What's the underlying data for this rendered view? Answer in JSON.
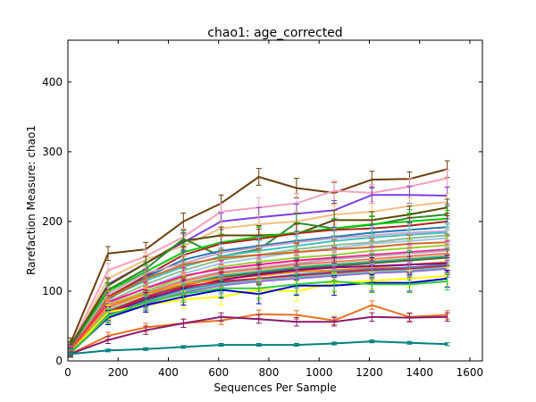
{
  "chart_data": {
    "type": "line",
    "title": "chao1: age_corrected",
    "xlabel": "Sequences Per Sample",
    "ylabel": "Rarefaction Measure: chao1",
    "xlim": [
      0,
      1650
    ],
    "ylim": [
      0,
      460
    ],
    "x_ticks": [
      0,
      200,
      400,
      600,
      800,
      1000,
      1200,
      1400,
      1600
    ],
    "y_ticks": [
      0,
      100,
      200,
      300,
      400
    ],
    "x_tick_labels": [
      "0",
      "200",
      "400",
      "600",
      "800",
      "1000",
      "1200",
      "1400",
      "1600"
    ],
    "y_tick_labels": [
      "0",
      "100",
      "200",
      "300",
      "400"
    ],
    "x": [
      10,
      160,
      310,
      460,
      610,
      760,
      910,
      1060,
      1210,
      1360,
      1510
    ],
    "grid": false,
    "error_bars": true,
    "series": [
      {
        "color": "#6b3e0a",
        "values": [
          25,
          154,
          160,
          200,
          226,
          264,
          248,
          241,
          260,
          261,
          275
        ],
        "err": [
          8,
          10,
          10,
          12,
          12,
          12,
          14,
          15,
          12,
          10,
          12
        ]
      },
      {
        "color": "#f4a0b8",
        "values": [
          20,
          130,
          150,
          178,
          214,
          220,
          226,
          244,
          241,
          250,
          262
        ],
        "err": [
          6,
          10,
          10,
          12,
          12,
          14,
          14,
          14,
          12,
          12,
          12
        ]
      },
      {
        "color": "#7b3fe4",
        "values": [
          18,
          110,
          140,
          170,
          200,
          206,
          211,
          216,
          238,
          238,
          237
        ],
        "err": [
          6,
          10,
          10,
          12,
          12,
          14,
          14,
          14,
          12,
          12,
          12
        ]
      },
      {
        "color": "#f0c080",
        "values": [
          18,
          118,
          145,
          165,
          190,
          196,
          200,
          210,
          214,
          222,
          228
        ],
        "err": [
          6,
          10,
          10,
          12,
          12,
          14,
          14,
          14,
          12,
          12,
          12
        ]
      },
      {
        "color": "#5a4a00",
        "values": [
          22,
          108,
          140,
          172,
          180,
          180,
          182,
          202,
          202,
          210,
          220
        ],
        "err": [
          6,
          10,
          10,
          12,
          12,
          14,
          14,
          14,
          12,
          12,
          12
        ]
      },
      {
        "color": "#2e8b2e",
        "values": [
          20,
          102,
          132,
          175,
          150,
          160,
          198,
          190,
          195,
          205,
          210
        ],
        "err": [
          6,
          10,
          10,
          12,
          12,
          14,
          14,
          14,
          12,
          12,
          12
        ]
      },
      {
        "color": "#00cc00",
        "values": [
          16,
          100,
          128,
          156,
          170,
          178,
          184,
          190,
          196,
          200,
          204
        ],
        "err": [
          6,
          10,
          10,
          12,
          12,
          14,
          14,
          14,
          12,
          12,
          12
        ]
      },
      {
        "color": "#b22222",
        "values": [
          18,
          92,
          122,
          152,
          168,
          175,
          183,
          188,
          190,
          194,
          200
        ],
        "err": [
          6,
          10,
          10,
          12,
          12,
          14,
          14,
          14,
          12,
          12,
          12
        ]
      },
      {
        "color": "#1f77b4",
        "values": [
          16,
          88,
          120,
          145,
          158,
          165,
          172,
          178,
          184,
          188,
          192
        ],
        "err": [
          6,
          10,
          10,
          12,
          12,
          14,
          14,
          14,
          12,
          12,
          12
        ]
      },
      {
        "color": "#c8a2c8",
        "values": [
          15,
          96,
          126,
          140,
          155,
          163,
          170,
          176,
          180,
          184,
          186
        ],
        "err": [
          6,
          10,
          10,
          12,
          12,
          14,
          14,
          14,
          12,
          12,
          12
        ]
      },
      {
        "color": "#40c0c0",
        "values": [
          15,
          90,
          115,
          135,
          150,
          158,
          165,
          172,
          177,
          181,
          184
        ],
        "err": [
          6,
          10,
          10,
          12,
          12,
          14,
          14,
          14,
          12,
          12,
          12
        ]
      },
      {
        "color": "#8fbc8f",
        "values": [
          14,
          85,
          110,
          130,
          145,
          152,
          160,
          166,
          170,
          176,
          180
        ],
        "err": [
          6,
          10,
          10,
          12,
          12,
          14,
          14,
          14,
          12,
          12,
          12
        ]
      },
      {
        "color": "#a0c4e8",
        "values": [
          14,
          82,
          105,
          125,
          140,
          148,
          156,
          162,
          168,
          172,
          176
        ],
        "err": [
          6,
          10,
          10,
          12,
          12,
          14,
          14,
          14,
          12,
          12,
          12
        ]
      },
      {
        "color": "#d2691e",
        "values": [
          15,
          90,
          118,
          138,
          148,
          152,
          156,
          160,
          163,
          168,
          170
        ],
        "err": [
          6,
          10,
          10,
          12,
          12,
          14,
          14,
          14,
          12,
          12,
          12
        ]
      },
      {
        "color": "#9acd32",
        "values": [
          13,
          80,
          100,
          120,
          135,
          142,
          148,
          152,
          158,
          162,
          166
        ],
        "err": [
          6,
          10,
          10,
          12,
          12,
          14,
          14,
          14,
          12,
          12,
          12
        ]
      },
      {
        "color": "#ff1493",
        "values": [
          14,
          84,
          104,
          122,
          132,
          138,
          144,
          148,
          152,
          156,
          160
        ],
        "err": [
          6,
          10,
          10,
          12,
          12,
          14,
          14,
          14,
          12,
          12,
          12
        ]
      },
      {
        "color": "#b0b0b0",
        "values": [
          13,
          78,
          98,
          116,
          128,
          134,
          140,
          146,
          150,
          154,
          158
        ],
        "err": [
          6,
          10,
          10,
          12,
          12,
          14,
          14,
          14,
          12,
          12,
          12
        ]
      },
      {
        "color": "#ff6666",
        "values": [
          13,
          76,
          96,
          114,
          126,
          132,
          138,
          142,
          146,
          150,
          154
        ],
        "err": [
          6,
          10,
          10,
          12,
          12,
          14,
          14,
          14,
          12,
          12,
          12
        ]
      },
      {
        "color": "#e0d080",
        "values": [
          12,
          74,
          94,
          112,
          124,
          130,
          136,
          140,
          144,
          148,
          152
        ],
        "err": [
          6,
          10,
          10,
          12,
          12,
          14,
          14,
          14,
          12,
          12,
          12
        ]
      },
      {
        "color": "#20b2aa",
        "values": [
          12,
          72,
          92,
          110,
          122,
          128,
          134,
          138,
          142,
          146,
          150
        ],
        "err": [
          6,
          10,
          10,
          12,
          12,
          14,
          14,
          14,
          12,
          12,
          12
        ]
      },
      {
        "color": "#556b2f",
        "values": [
          12,
          70,
          90,
          108,
          120,
          126,
          132,
          136,
          140,
          144,
          148
        ],
        "err": [
          6,
          10,
          10,
          12,
          12,
          14,
          14,
          14,
          12,
          12,
          12
        ]
      },
      {
        "color": "#ff8c00",
        "values": [
          12,
          80,
          96,
          110,
          118,
          122,
          128,
          130,
          134,
          138,
          142
        ],
        "err": [
          6,
          10,
          10,
          12,
          12,
          14,
          14,
          14,
          12,
          12,
          12
        ]
      },
      {
        "color": "#8b008b",
        "values": [
          12,
          68,
          88,
          104,
          116,
          124,
          130,
          134,
          136,
          138,
          140
        ],
        "err": [
          6,
          10,
          10,
          12,
          12,
          14,
          14,
          14,
          12,
          12,
          12
        ]
      },
      {
        "color": "#4682b4",
        "values": [
          12,
          66,
          86,
          102,
          112,
          118,
          124,
          128,
          132,
          134,
          138
        ],
        "err": [
          6,
          10,
          10,
          12,
          12,
          14,
          14,
          14,
          12,
          12,
          12
        ]
      },
      {
        "color": "#dc143c",
        "values": [
          12,
          70,
          92,
          106,
          114,
          118,
          122,
          126,
          130,
          132,
          136
        ],
        "err": [
          6,
          10,
          10,
          12,
          12,
          14,
          14,
          14,
          12,
          12,
          12
        ]
      },
      {
        "color": "#66cdaa",
        "values": [
          11,
          64,
          84,
          100,
          110,
          116,
          120,
          124,
          128,
          130,
          134
        ],
        "err": [
          6,
          10,
          10,
          12,
          12,
          14,
          14,
          14,
          12,
          12,
          12
        ]
      },
      {
        "color": "#9370db",
        "values": [
          11,
          62,
          82,
          98,
          108,
          114,
          118,
          122,
          126,
          128,
          132
        ],
        "err": [
          6,
          10,
          10,
          12,
          12,
          14,
          14,
          14,
          12,
          12,
          12
        ]
      },
      {
        "color": "#ffff00",
        "values": [
          12,
          70,
          80,
          88,
          92,
          102,
          100,
          112,
          115,
          118,
          122
        ],
        "err": [
          6,
          10,
          10,
          12,
          12,
          14,
          14,
          14,
          12,
          12,
          12
        ]
      },
      {
        "color": "#0000cd",
        "values": [
          12,
          62,
          80,
          92,
          102,
          96,
          108,
          108,
          112,
          112,
          118
        ],
        "err": [
          6,
          10,
          10,
          12,
          12,
          14,
          14,
          14,
          12,
          12,
          12
        ]
      },
      {
        "color": "#32cd32",
        "values": [
          11,
          64,
          84,
          96,
          104,
          104,
          110,
          114,
          110,
          110,
          114
        ],
        "err": [
          6,
          10,
          10,
          12,
          12,
          14,
          14,
          14,
          12,
          12,
          12
        ]
      },
      {
        "color": "#e87020",
        "values": [
          10,
          36,
          48,
          54,
          58,
          67,
          66,
          58,
          80,
          63,
          66
        ],
        "err": [
          4,
          5,
          6,
          6,
          6,
          6,
          6,
          6,
          6,
          6,
          6
        ]
      },
      {
        "color": "#8b1a6b",
        "values": [
          10,
          30,
          44,
          54,
          63,
          60,
          56,
          56,
          63,
          62,
          63
        ],
        "err": [
          4,
          5,
          6,
          6,
          6,
          6,
          6,
          6,
          6,
          6,
          6
        ]
      },
      {
        "color": "#008080",
        "values": [
          10,
          15,
          17,
          20,
          23,
          23,
          23,
          25,
          28,
          26,
          24
        ],
        "err": [
          2,
          2,
          2,
          2,
          2,
          2,
          2,
          2,
          2,
          2,
          2
        ]
      }
    ]
  }
}
